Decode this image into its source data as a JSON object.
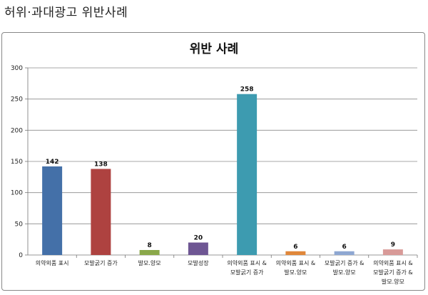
{
  "heading": "허위·과대광고 위반사례",
  "chart_data": {
    "type": "bar",
    "title": "위반 사례",
    "categories": [
      [
        "의약외품 표시"
      ],
      [
        "모발굵기 증가"
      ],
      [
        "발모.양모"
      ],
      [
        "모발성장"
      ],
      [
        "의약외품 표시 &",
        "모발굵기 증가"
      ],
      [
        "의약외품 표시 &",
        "발모.양모"
      ],
      [
        "모발굵기 증가 &",
        "발모.양모"
      ],
      [
        "의약외품 표시 &",
        "모발굵기 증가 &",
        "발모.양모"
      ]
    ],
    "values": [
      142,
      138,
      8,
      20,
      258,
      6,
      6,
      9
    ],
    "colors": [
      "#4470a8",
      "#ae4240",
      "#8aa84a",
      "#6e5693",
      "#3d9bb0",
      "#e0873a",
      "#8ea7d2",
      "#d89a98"
    ],
    "ylim": [
      0,
      300
    ],
    "yticks": [
      0,
      50,
      100,
      150,
      200,
      250,
      300
    ],
    "grid": true,
    "legend": "none"
  }
}
